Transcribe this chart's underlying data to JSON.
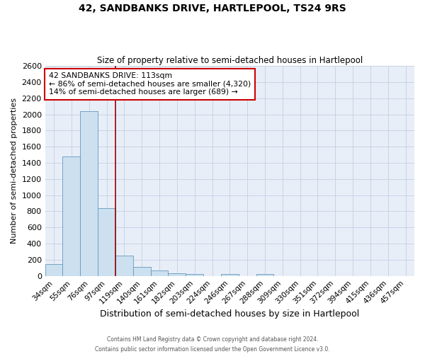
{
  "title": "42, SANDBANKS DRIVE, HARTLEPOOL, TS24 9RS",
  "subtitle": "Size of property relative to semi-detached houses in Hartlepool",
  "xlabel": "Distribution of semi-detached houses by size in Hartlepool",
  "ylabel": "Number of semi-detached properties",
  "bin_labels": [
    "34sqm",
    "55sqm",
    "76sqm",
    "97sqm",
    "119sqm",
    "140sqm",
    "161sqm",
    "182sqm",
    "203sqm",
    "224sqm",
    "246sqm",
    "267sqm",
    "288sqm",
    "309sqm",
    "330sqm",
    "351sqm",
    "372sqm",
    "394sqm",
    "415sqm",
    "436sqm",
    "457sqm"
  ],
  "bar_heights": [
    150,
    1480,
    2040,
    840,
    255,
    115,
    65,
    35,
    20,
    0,
    25,
    0,
    20,
    0,
    0,
    0,
    0,
    0,
    0,
    0,
    0
  ],
  "bar_color": "#cce0f0",
  "bar_edge_color": "#6699bb",
  "grid_color": "#c8d4e4",
  "background_color": "#e8eef8",
  "vline_x": 4,
  "vline_color": "#990000",
  "ylim": [
    0,
    2600
  ],
  "yticks": [
    0,
    200,
    400,
    600,
    800,
    1000,
    1200,
    1400,
    1600,
    1800,
    2000,
    2200,
    2400,
    2600
  ],
  "annotation_title": "42 SANDBANKS DRIVE: 113sqm",
  "annotation_line1": "← 86% of semi-detached houses are smaller (4,320)",
  "annotation_line2": "14% of semi-detached houses are larger (689) →",
  "footer_line1": "Contains HM Land Registry data © Crown copyright and database right 2024.",
  "footer_line2": "Contains public sector information licensed under the Open Government Licence v3.0."
}
